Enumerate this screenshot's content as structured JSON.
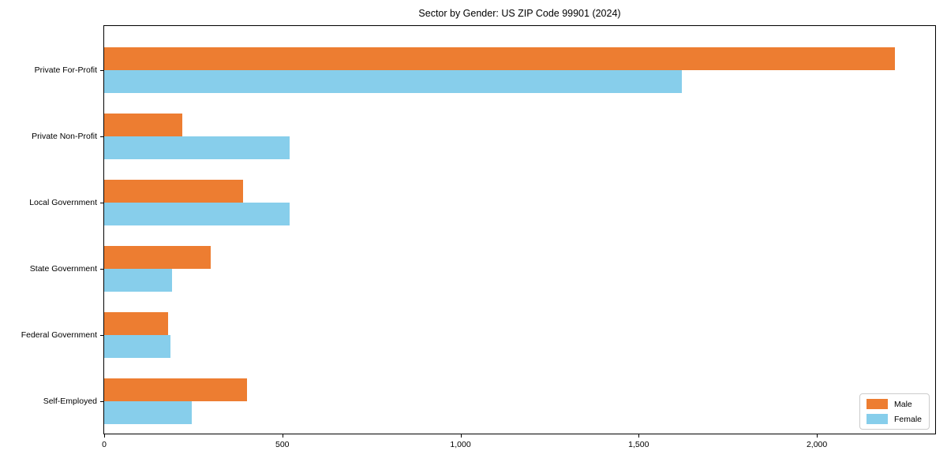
{
  "chart_data": {
    "type": "bar",
    "orientation": "horizontal",
    "title": "Sector by Gender: US ZIP Code 99901 (2024)",
    "categories": [
      "Private For-Profit",
      "Private Non-Profit",
      "Local Government",
      "State Government",
      "Federal Government",
      "Self-Employed"
    ],
    "series": [
      {
        "name": "Male",
        "color": "#ED7D31",
        "values": [
          2220,
          220,
          390,
          300,
          180,
          400
        ]
      },
      {
        "name": "Female",
        "color": "#87CEEB",
        "values": [
          1620,
          520,
          520,
          190,
          185,
          245
        ]
      }
    ],
    "xlabel": "",
    "ylabel": "",
    "xlim": [
      0,
      2332
    ],
    "xticks": [
      {
        "value": 0,
        "label": "0"
      },
      {
        "value": 500,
        "label": "500"
      },
      {
        "value": 1000,
        "label": "1,000"
      },
      {
        "value": 1500,
        "label": "1,500"
      },
      {
        "value": 2000,
        "label": "2,000"
      }
    ],
    "grid": false,
    "legend_position": "lower right",
    "background_color": "#ffffff",
    "spine_color": "#000000"
  }
}
